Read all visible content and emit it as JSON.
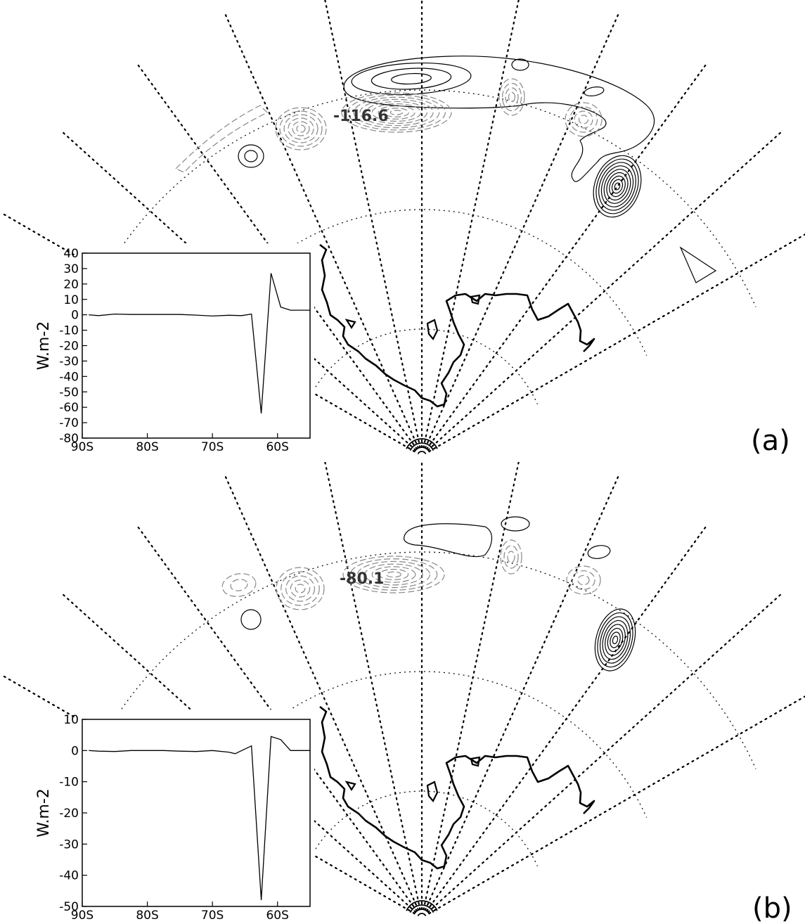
{
  "panels": [
    {
      "label": "(a)",
      "map_min_label": "-116.6",
      "chart_data": {
        "type": "line",
        "xlabel": "",
        "ylabel": "W.m-2",
        "x_tick_labels": [
          "90S",
          "80S",
          "70S",
          "60S"
        ],
        "x_ticks": [
          -90,
          -80,
          -70,
          -60
        ],
        "xlim": [
          -90,
          -55
        ],
        "ylim": [
          -80,
          40
        ],
        "y_ticks": [
          40,
          30,
          20,
          10,
          0,
          -10,
          -20,
          -30,
          -40,
          -50,
          -60,
          -70,
          -80
        ],
        "series": [
          {
            "x": [
              -89,
              -87.5,
              -85,
              -82.5,
              -80,
              -77.5,
              -75,
              -72.5,
              -70,
              -67.5,
              -65.5,
              -64,
              -62.5,
              -61,
              -59.5,
              -58,
              -55
            ],
            "y": [
              0,
              -0.5,
              0.5,
              0.2,
              0.2,
              0.2,
              0.2,
              -0.2,
              -0.8,
              -0.3,
              -0.5,
              0.5,
              -64,
              27,
              5,
              3,
              3
            ]
          }
        ]
      }
    },
    {
      "label": "(b)",
      "map_min_label": "-80.1",
      "chart_data": {
        "type": "line",
        "xlabel": "",
        "ylabel": "W.m-2",
        "x_tick_labels": [
          "90S",
          "80S",
          "70S",
          "60S"
        ],
        "x_ticks": [
          -90,
          -80,
          -70,
          -60
        ],
        "xlim": [
          -90,
          -55
        ],
        "ylim": [
          -50,
          10
        ],
        "y_ticks": [
          10,
          0,
          -10,
          -20,
          -30,
          -40,
          -50
        ],
        "series": [
          {
            "x": [
              -89,
              -87.5,
              -85,
              -82.5,
              -80,
              -77.5,
              -75,
              -72.5,
              -70,
              -67.5,
              -66.5,
              -64,
              -62.5,
              -61,
              -59.5,
              -58,
              -55
            ],
            "y": [
              0,
              -0.2,
              -0.3,
              0,
              0,
              0,
              -0.2,
              -0.3,
              0,
              -0.5,
              -1,
              1.5,
              -48,
              4.5,
              3.5,
              0,
              0
            ]
          }
        ]
      }
    }
  ]
}
